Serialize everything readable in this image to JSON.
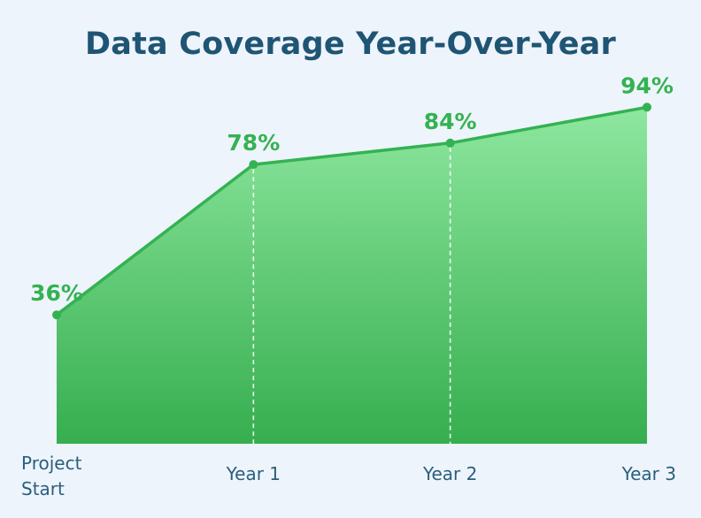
{
  "chart_data": {
    "type": "area",
    "title": "Data Coverage Year-Over-Year",
    "categories": [
      "Project\nStart",
      "Year 1",
      "Year 2",
      "Year 3"
    ],
    "values": [
      36,
      78,
      84,
      94
    ],
    "data_labels": [
      "36%",
      "78%",
      "84%",
      "94%"
    ],
    "xlabel": "",
    "ylabel": "",
    "ylim": [
      0,
      100
    ],
    "grid": false,
    "colors": {
      "line": "#34b252",
      "fill_top": "#8ee79f",
      "fill_bottom": "#36ae4f",
      "title": "#1f5574",
      "tick": "#2b5f7c"
    }
  }
}
